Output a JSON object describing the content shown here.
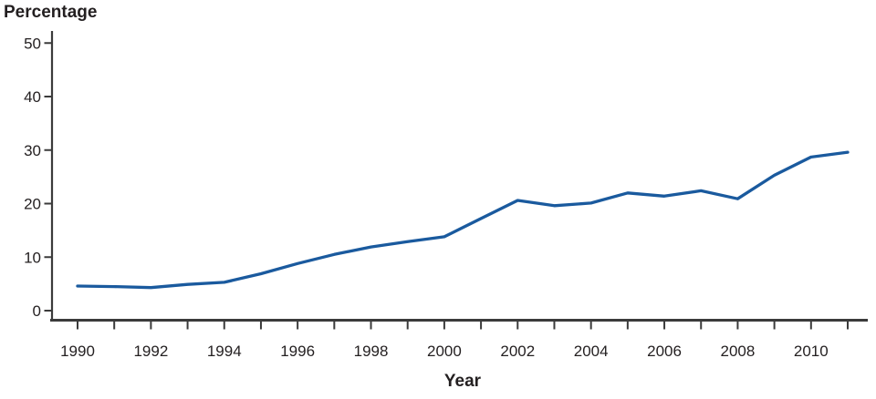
{
  "figure": {
    "y_axis_title": "Percentage",
    "x_axis_title": "Year"
  },
  "chart_data": {
    "type": "line",
    "title": "",
    "ylabel": "Percentage",
    "xlabel": "Year",
    "x": [
      1990,
      1991,
      1992,
      1993,
      1994,
      1995,
      1996,
      1997,
      1998,
      1999,
      2000,
      2001,
      2002,
      2003,
      2004,
      2005,
      2006,
      2007,
      2008,
      2009,
      2010,
      2011
    ],
    "series": [
      {
        "name": "Percentage",
        "values": [
          4.6,
          4.5,
          4.3,
          4.9,
          5.3,
          6.9,
          8.8,
          10.5,
          11.9,
          12.9,
          13.8,
          17.2,
          20.6,
          19.6,
          20.1,
          22.0,
          21.4,
          22.4,
          20.9,
          25.3,
          28.7,
          29.6
        ]
      }
    ],
    "ylim": [
      0,
      50
    ],
    "y_ticks": [
      0,
      10,
      20,
      30,
      40,
      50
    ],
    "x_tick_label_step": 2,
    "grid": false,
    "legend": "none",
    "line_color": "#1A5A9E",
    "axis_color": "#3B3B3B",
    "text_color": "#231F20"
  }
}
